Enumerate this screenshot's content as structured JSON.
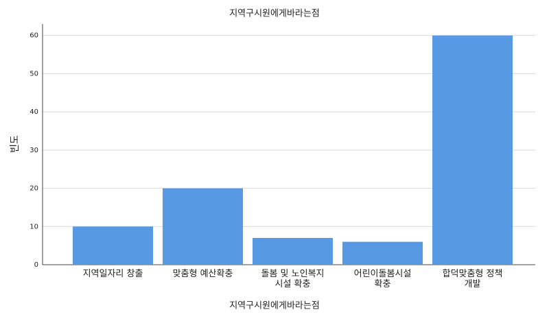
{
  "chart_data": {
    "type": "bar",
    "title": "지역구시원에게바라는점",
    "x_label": "지역구시원에게바라는점",
    "y_label": "빈도",
    "categories": [
      "지역일자리 창출",
      "맞춤형 예산확충",
      "돌봄 및 노인복지\n시설 확충",
      "어린이돌봄시설\n확충",
      "합덕맞춤형 정책\n개발"
    ],
    "values": [
      10,
      20,
      7,
      6,
      60
    ],
    "color": "#5899e3",
    "ylim": [
      0,
      63
    ],
    "yticks": [
      0,
      10,
      20,
      30,
      40,
      50,
      60
    ],
    "grid": true
  }
}
